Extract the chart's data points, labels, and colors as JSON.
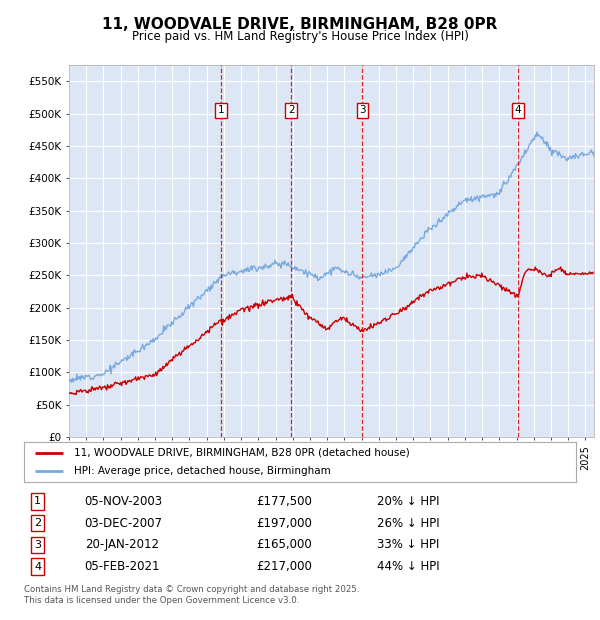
{
  "title": "11, WOODVALE DRIVE, BIRMINGHAM, B28 0PR",
  "subtitle": "Price paid vs. HM Land Registry's House Price Index (HPI)",
  "ylabel_ticks": [
    "£0",
    "£50K",
    "£100K",
    "£150K",
    "£200K",
    "£250K",
    "£300K",
    "£350K",
    "£400K",
    "£450K",
    "£500K",
    "£550K"
  ],
  "ytick_values": [
    0,
    50000,
    100000,
    150000,
    200000,
    250000,
    300000,
    350000,
    400000,
    450000,
    500000,
    550000
  ],
  "ylim": [
    0,
    575000
  ],
  "xlim_start": 1995.0,
  "xlim_end": 2025.5,
  "plot_bg_color": "#dce6f5",
  "red_line_color": "#cc0000",
  "blue_line_color": "#7aaadd",
  "legend_label_red": "11, WOODVALE DRIVE, BIRMINGHAM, B28 0PR (detached house)",
  "legend_label_blue": "HPI: Average price, detached house, Birmingham",
  "sale_markers": [
    {
      "num": 1,
      "year": 2003.85,
      "price": 177500,
      "date": "05-NOV-2003",
      "pct": "20%",
      "label": "£177,500"
    },
    {
      "num": 2,
      "year": 2007.92,
      "price": 197000,
      "date": "03-DEC-2007",
      "pct": "26%",
      "label": "£197,000"
    },
    {
      "num": 3,
      "year": 2012.05,
      "price": 165000,
      "date": "20-JAN-2012",
      "pct": "33%",
      "label": "£165,000"
    },
    {
      "num": 4,
      "year": 2021.09,
      "price": 217000,
      "date": "05-FEB-2021",
      "pct": "44%",
      "label": "£217,000"
    }
  ],
  "footer_line1": "Contains HM Land Registry data © Crown copyright and database right 2025.",
  "footer_line2": "This data is licensed under the Open Government Licence v3.0."
}
